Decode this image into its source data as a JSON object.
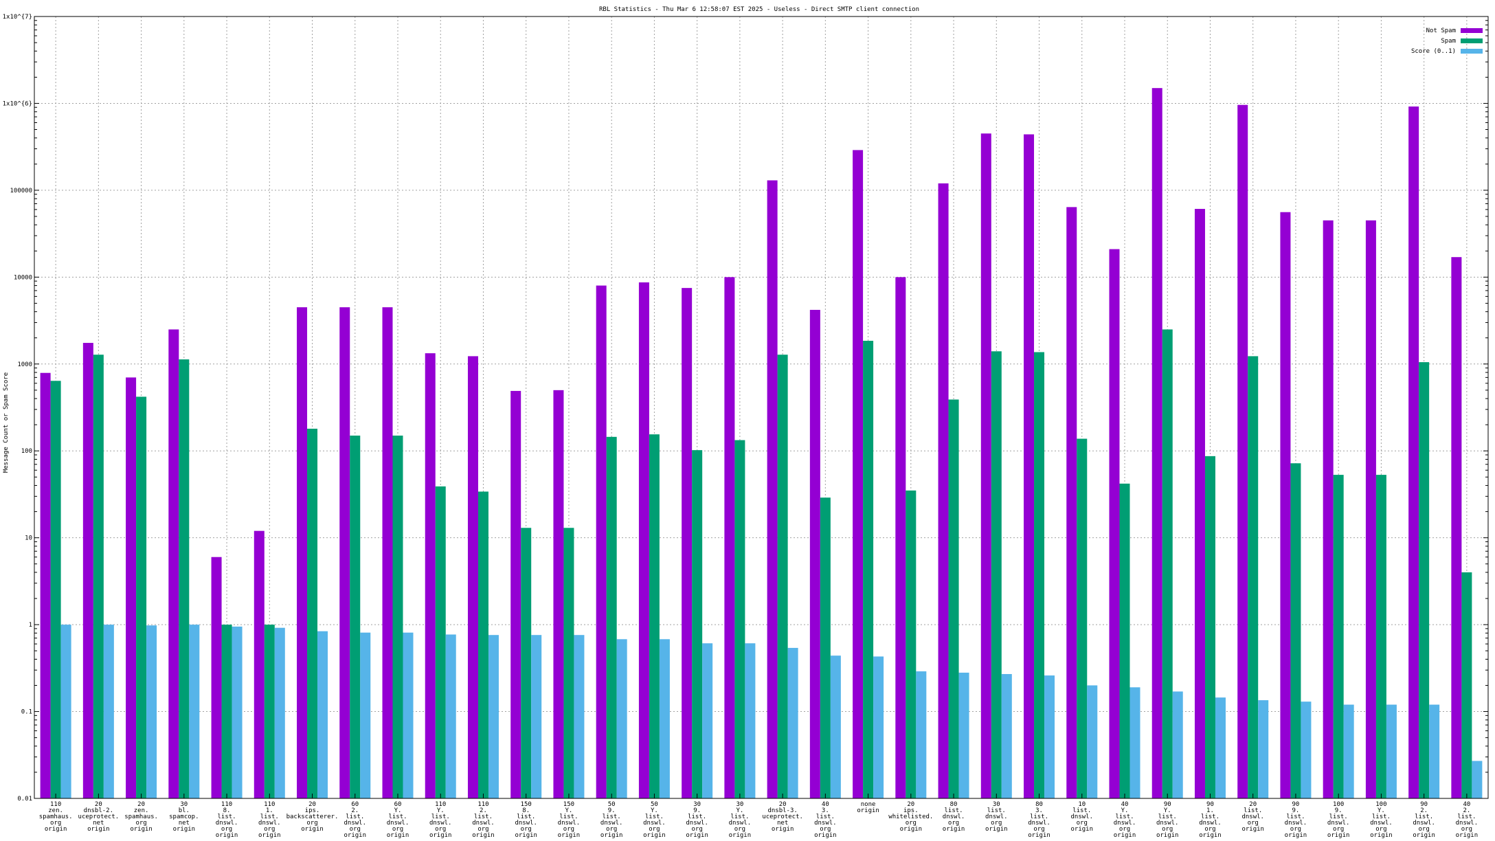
{
  "chart_data": {
    "type": "bar",
    "title": "RBL Statistics - Thu Mar  6 12:58:07 EST 2025 - Useless - Direct SMTP client connection",
    "xlabel": "",
    "ylabel": "Message Count or Spam Score",
    "y_scale": "log",
    "ylim": [
      0.01,
      10000000
    ],
    "grid": true,
    "legend_position": "top-right",
    "y_ticks": [
      {
        "value": 0.01,
        "label": "0.01"
      },
      {
        "value": 0.1,
        "label": "0.1"
      },
      {
        "value": 1,
        "label": "1"
      },
      {
        "value": 10,
        "label": "10"
      },
      {
        "value": 100,
        "label": "100"
      },
      {
        "value": 1000,
        "label": "1000"
      },
      {
        "value": 10000,
        "label": "10000"
      },
      {
        "value": 100000,
        "label": "100000"
      },
      {
        "value": 1000000,
        "label": "1x10^{6}"
      },
      {
        "value": 10000000,
        "label": "1x10^{7}"
      }
    ],
    "categories": [
      [
        "110",
        "zen.",
        "spamhaus.",
        "org",
        "origin"
      ],
      [
        "20",
        "dnsbl-2.",
        "uceprotect.",
        "net",
        "origin"
      ],
      [
        "20",
        "zen.",
        "spamhaus.",
        "org",
        "origin"
      ],
      [
        "30",
        "bl.",
        "spamcop.",
        "net",
        "origin"
      ],
      [
        "110",
        "8.",
        "list.",
        "dnswl.",
        "org",
        "origin"
      ],
      [
        "110",
        "1.",
        "list.",
        "dnswl.",
        "org",
        "origin"
      ],
      [
        "20",
        "ips.",
        "backscatterer.",
        "org",
        "origin"
      ],
      [
        "60",
        "2.",
        "list.",
        "dnswl.",
        "org",
        "origin"
      ],
      [
        "60",
        "Y.",
        "list.",
        "dnswl.",
        "org",
        "origin"
      ],
      [
        "110",
        "Y.",
        "list.",
        "dnswl.",
        "org",
        "origin"
      ],
      [
        "110",
        "2.",
        "list.",
        "dnswl.",
        "org",
        "origin"
      ],
      [
        "150",
        "8.",
        "list.",
        "dnswl.",
        "org",
        "origin"
      ],
      [
        "150",
        "Y.",
        "list.",
        "dnswl.",
        "org",
        "origin"
      ],
      [
        "50",
        "9.",
        "list.",
        "dnswl.",
        "org",
        "origin"
      ],
      [
        "50",
        "Y.",
        "list.",
        "dnswl.",
        "org",
        "origin"
      ],
      [
        "30",
        "9.",
        "list.",
        "dnswl.",
        "org",
        "origin"
      ],
      [
        "30",
        "Y.",
        "list.",
        "dnswl.",
        "org",
        "origin"
      ],
      [
        "20",
        "dnsbl-3.",
        "uceprotect.",
        "net",
        "origin"
      ],
      [
        "40",
        "3.",
        "list.",
        "dnswl.",
        "org",
        "origin"
      ],
      [
        "none",
        "origin"
      ],
      [
        "20",
        "ips.",
        "whitelisted.",
        "org",
        "origin"
      ],
      [
        "80",
        "list.",
        "dnswl.",
        "org",
        "origin"
      ],
      [
        "30",
        "list.",
        "dnswl.",
        "org",
        "origin"
      ],
      [
        "80",
        "3.",
        "list.",
        "dnswl.",
        "org",
        "origin"
      ],
      [
        "10",
        "list.",
        "dnswl.",
        "org",
        "origin"
      ],
      [
        "40",
        "Y.",
        "list.",
        "dnswl.",
        "org",
        "origin"
      ],
      [
        "90",
        "Y.",
        "list.",
        "dnswl.",
        "org",
        "origin"
      ],
      [
        "90",
        "1.",
        "list.",
        "dnswl.",
        "org",
        "origin"
      ],
      [
        "20",
        "list.",
        "dnswl.",
        "org",
        "origin"
      ],
      [
        "90",
        "9.",
        "list.",
        "dnswl.",
        "org",
        "origin"
      ],
      [
        "100",
        "9.",
        "list.",
        "dnswl.",
        "org",
        "origin"
      ],
      [
        "100",
        "Y.",
        "list.",
        "dnswl.",
        "org",
        "origin"
      ],
      [
        "90",
        "2.",
        "list.",
        "dnswl.",
        "org",
        "origin"
      ],
      [
        "40",
        "2.",
        "list.",
        "dnswl.",
        "org",
        "origin"
      ]
    ],
    "series": [
      {
        "name": "Not Spam",
        "color": "#9400d3",
        "values": [
          790,
          1750,
          700,
          2500,
          6,
          12,
          4500,
          4500,
          4500,
          1330,
          1230,
          490,
          500,
          8000,
          8700,
          7500,
          10000,
          130000,
          4200,
          290000,
          10000,
          120000,
          450000,
          440000,
          64000,
          21000,
          1500000,
          61000,
          960000,
          56000,
          45000,
          45000,
          920000,
          17000
        ]
      },
      {
        "name": "Spam",
        "color": "#009e73",
        "values": [
          640,
          1280,
          420,
          1130,
          1,
          1,
          180,
          150,
          150,
          39,
          34,
          13,
          13,
          145,
          155,
          102,
          133,
          1280,
          29,
          1850,
          35,
          390,
          1400,
          1370,
          138,
          42,
          2500,
          87,
          1230,
          72,
          53,
          53,
          1050,
          4
        ]
      },
      {
        "name": "Score (0..1)",
        "color": "#56b4e9",
        "values": [
          1,
          1,
          0.98,
          1,
          0.95,
          0.92,
          0.84,
          0.81,
          0.81,
          0.77,
          0.76,
          0.76,
          0.76,
          0.68,
          0.68,
          0.61,
          0.61,
          0.54,
          0.44,
          0.43,
          0.29,
          0.28,
          0.27,
          0.26,
          0.2,
          0.19,
          0.17,
          0.145,
          0.135,
          0.13,
          0.12,
          0.12,
          0.12,
          0.027
        ]
      }
    ]
  }
}
